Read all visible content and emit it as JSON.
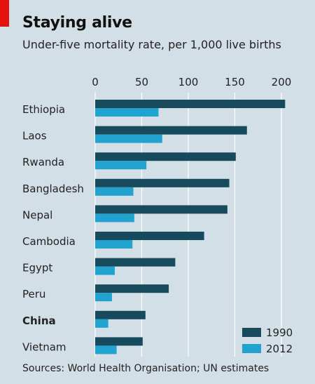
{
  "header": {
    "title": "Staying alive",
    "subtitle": "Under-five mortality rate, per 1,000 live births"
  },
  "source": "Sources: World Health Organisation; UN estimates",
  "colors": {
    "background": "#d3dfe6",
    "series_1990": "#174a5c",
    "series_2012": "#22a3cf",
    "gridline": "#ffffff",
    "brand_red": "#e3120b"
  },
  "chart_data": {
    "type": "bar",
    "orientation": "horizontal",
    "categories": [
      "Ethiopia",
      "Laos",
      "Rwanda",
      "Bangladesh",
      "Nepal",
      "Cambodia",
      "Egypt",
      "Peru",
      "China",
      "Vietnam"
    ],
    "highlighted_category": "China",
    "series": [
      {
        "name": "1990",
        "color": "#174a5c",
        "values": [
          204,
          163,
          151,
          144,
          142,
          117,
          86,
          79,
          54,
          51
        ]
      },
      {
        "name": "2012",
        "color": "#22a3cf",
        "values": [
          68,
          72,
          55,
          41,
          42,
          40,
          21,
          18,
          14,
          23
        ]
      }
    ],
    "x_ticks": [
      0,
      50,
      100,
      150,
      200
    ],
    "xlim": [
      0,
      210
    ],
    "grid": true,
    "legend_position": "bottom-right"
  }
}
